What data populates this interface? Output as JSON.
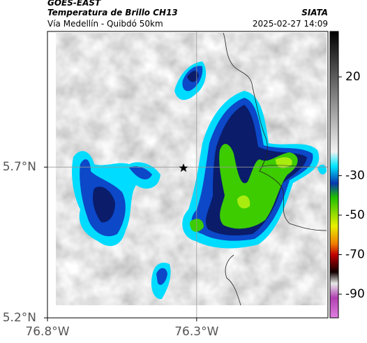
{
  "header": {
    "source": "GOES-EAST",
    "title": "Temperatura de Brillo CH13",
    "subtitle": "Vía Medellín - Quibdó 50km",
    "brand": "SIATA",
    "timestamp": "2025-02-27 14:09"
  },
  "map": {
    "xlim": [
      -76.8,
      -75.86
    ],
    "ylim": [
      5.2,
      6.15
    ],
    "xticks": [
      {
        "value": -76.8,
        "label": "76.8°W"
      },
      {
        "value": -76.3,
        "label": "76.3°W"
      }
    ],
    "yticks": [
      {
        "value": 5.2,
        "label": "5.2°N"
      },
      {
        "value": 5.7,
        "label": "5.7°N"
      }
    ],
    "grid": true
  },
  "colorbar": {
    "clim": [
      -102,
      43
    ],
    "ticks": [
      20,
      -30,
      -50,
      -70,
      -90
    ]
  }
}
